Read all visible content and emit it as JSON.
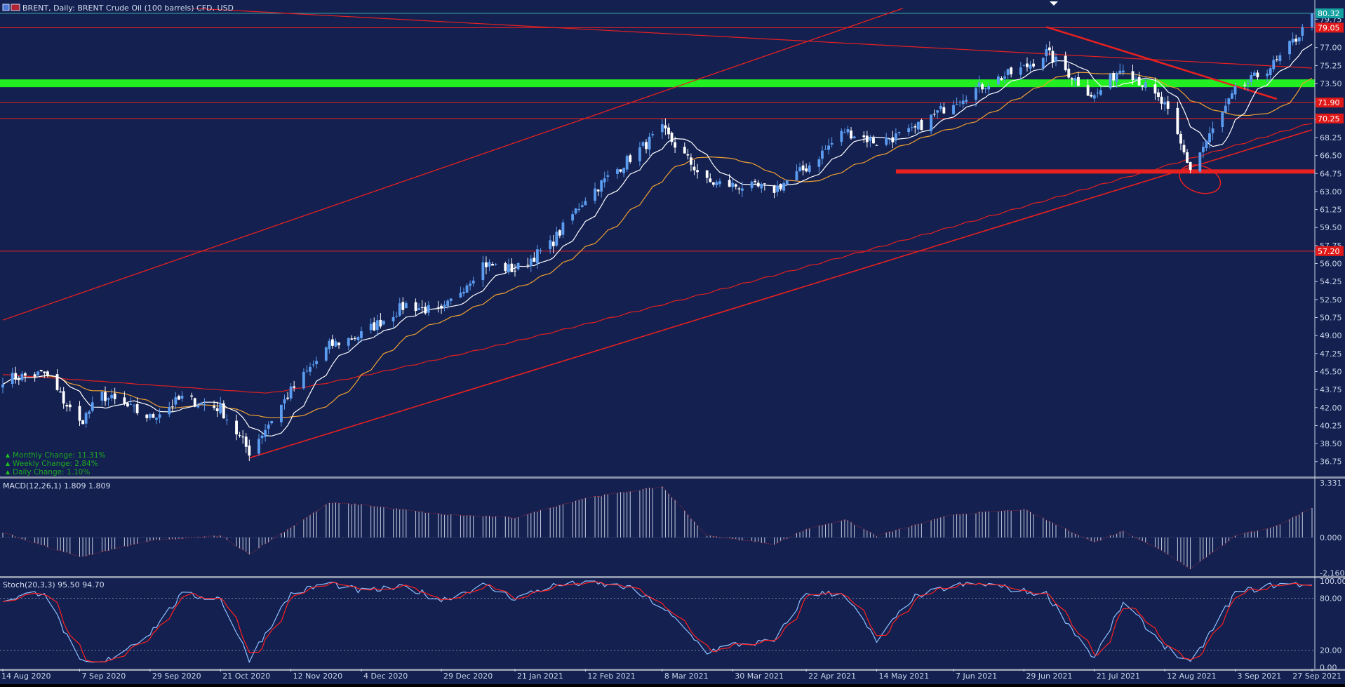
{
  "header": {
    "symbol_title": "BRENT, Daily:  BRENT Crude Oil (100 barrels) CFD, USD"
  },
  "colors": {
    "background": "#132050",
    "up_candle": "#5b9cf0",
    "down_candle": "#ffffff",
    "ma_fast": "#ffffff",
    "ma_mid": "#f0a030",
    "ma_slow": "#e02020",
    "trend_line": "#e82020",
    "support_zone": "#22ee22",
    "macd_hist": "#c8cde0",
    "macd_signal": "#e03030",
    "stoch_main": "#8fc0ff",
    "stoch_signal": "#ff2020"
  },
  "stats": [
    {
      "label": "Monthly Change: 11.31%",
      "direction": "up"
    },
    {
      "label": "Weekly Change: 2.84%",
      "direction": "up"
    },
    {
      "label": "Daily Change: 1.10%",
      "direction": "up"
    }
  ],
  "price_tags": [
    {
      "price": 80.32,
      "text": "80.32",
      "style": "teal"
    },
    {
      "price": 78.93,
      "text": "79.05",
      "style": "red"
    },
    {
      "price": 71.65,
      "text": "71.90",
      "style": "red"
    },
    {
      "price": 70.1,
      "text": "70.25",
      "style": "red"
    },
    {
      "price": 57.21,
      "text": "57.20",
      "style": "red"
    }
  ],
  "chart_data": [
    {
      "type": "candlestick",
      "title": "BRENT, Daily:  BRENT Crude Oil (100 barrels) CFD, USD",
      "ylim": [
        35.3,
        80.8
      ],
      "y_ticks": [
        "79.75",
        "77.00",
        "75.25",
        "73.50",
        "71.75",
        "70.00",
        "68.25",
        "66.50",
        "64.75",
        "63.00",
        "61.25",
        "59.50",
        "57.75",
        "56.00",
        "54.25",
        "52.50",
        "50.75",
        "49.00",
        "47.25",
        "45.50",
        "43.75",
        "42.00",
        "40.25",
        "38.50",
        "36.75"
      ],
      "x_labels": [
        "14 Aug 2020",
        "7 Sep 2020",
        "29 Sep 2020",
        "21 Oct 2020",
        "12 Nov 2020",
        "4 Dec 2020",
        "29 Dec 2020",
        "21 Jan 2021",
        "12 Feb 2021",
        "8 Mar 2021",
        "30 Mar 2021",
        "22 Apr 2021",
        "14 May 2021",
        "7 Jun 2021",
        "29 Jun 2021",
        "21 Jul 2021",
        "12 Aug 2021",
        "3 Sep 2021",
        "27 Sep 2021"
      ],
      "close_anchors": [
        {
          "date": "14 Aug 2020",
          "close": 44.8
        },
        {
          "date": "27 Aug 2020",
          "close": 45.3
        },
        {
          "date": "7 Sep 2020",
          "close": 40.5
        },
        {
          "date": "14 Sep 2020",
          "close": 43.2
        },
        {
          "date": "29 Sep 2020",
          "close": 41.0
        },
        {
          "date": "9 Oct 2020",
          "close": 42.9
        },
        {
          "date": "21 Oct 2020",
          "close": 41.9
        },
        {
          "date": "30 Oct 2020",
          "close": 37.7
        },
        {
          "date": "12 Nov 2020",
          "close": 43.6
        },
        {
          "date": "24 Nov 2020",
          "close": 48.0
        },
        {
          "date": "4 Dec 2020",
          "close": 49.1
        },
        {
          "date": "18 Dec 2020",
          "close": 52.0
        },
        {
          "date": "29 Dec 2020",
          "close": 51.2
        },
        {
          "date": "11 Jan 2021",
          "close": 56.0
        },
        {
          "date": "21 Jan 2021",
          "close": 55.4
        },
        {
          "date": "1 Feb 2021",
          "close": 57.8
        },
        {
          "date": "12 Feb 2021",
          "close": 62.4
        },
        {
          "date": "25 Feb 2021",
          "close": 66.0
        },
        {
          "date": "8 Mar 2021",
          "close": 69.0
        },
        {
          "date": "22 Mar 2021",
          "close": 63.9
        },
        {
          "date": "30 Mar 2021",
          "close": 63.6
        },
        {
          "date": "12 Apr 2021",
          "close": 63.2
        },
        {
          "date": "22 Apr 2021",
          "close": 65.3
        },
        {
          "date": "4 May 2021",
          "close": 68.9
        },
        {
          "date": "14 May 2021",
          "close": 67.8
        },
        {
          "date": "25 May 2021",
          "close": 68.8
        },
        {
          "date": "7 Jun 2021",
          "close": 71.8
        },
        {
          "date": "18 Jun 2021",
          "close": 73.6
        },
        {
          "date": "29 Jun 2021",
          "close": 75.0
        },
        {
          "date": "6 Jul 2021",
          "close": 76.5
        },
        {
          "date": "21 Jul 2021",
          "close": 72.2
        },
        {
          "date": "30 Jul 2021",
          "close": 75.3
        },
        {
          "date": "12 Aug 2021",
          "close": 71.3
        },
        {
          "date": "20 Aug 2021",
          "close": 65.2
        },
        {
          "date": "3 Sep 2021",
          "close": 72.7
        },
        {
          "date": "16 Sep 2021",
          "close": 75.6
        },
        {
          "date": "27 Sep 2021",
          "close": 79.8
        }
      ],
      "indicators": [
        "fast moving average (white)",
        "medium moving average (orange)",
        "slow moving average (red)"
      ]
    },
    {
      "type": "bar",
      "title": "MACD(12,26,1) 1.809 1.809",
      "ylim": [
        -2.4,
        3.5
      ],
      "y_ticks": [
        "3.331",
        "0.000",
        "-2.160"
      ],
      "anchors": [
        {
          "date": "14 Aug 2020",
          "value": 0.3
        },
        {
          "date": "7 Sep 2020",
          "value": -1.2
        },
        {
          "date": "29 Sep 2020",
          "value": -0.2
        },
        {
          "date": "21 Oct 2020",
          "value": 0.1
        },
        {
          "date": "30 Oct 2020",
          "value": -1.0
        },
        {
          "date": "24 Nov 2020",
          "value": 2.1
        },
        {
          "date": "4 Dec 2020",
          "value": 2.0
        },
        {
          "date": "29 Dec 2020",
          "value": 1.4
        },
        {
          "date": "21 Jan 2021",
          "value": 1.2
        },
        {
          "date": "12 Feb 2021",
          "value": 2.4
        },
        {
          "date": "8 Mar 2021",
          "value": 3.1
        },
        {
          "date": "22 Mar 2021",
          "value": 0.1
        },
        {
          "date": "12 Apr 2021",
          "value": -0.4
        },
        {
          "date": "22 Apr 2021",
          "value": 0.5
        },
        {
          "date": "4 May 2021",
          "value": 1.1
        },
        {
          "date": "14 May 2021",
          "value": 0.1
        },
        {
          "date": "7 Jun 2021",
          "value": 1.4
        },
        {
          "date": "29 Jun 2021",
          "value": 1.7
        },
        {
          "date": "21 Jul 2021",
          "value": -0.3
        },
        {
          "date": "30 Jul 2021",
          "value": 0.4
        },
        {
          "date": "12 Aug 2021",
          "value": -0.9
        },
        {
          "date": "20 Aug 2021",
          "value": -1.9
        },
        {
          "date": "3 Sep 2021",
          "value": 0.1
        },
        {
          "date": "16 Sep 2021",
          "value": 0.7
        },
        {
          "date": "27 Sep 2021",
          "value": 1.809
        }
      ]
    },
    {
      "type": "line",
      "title": "Stoch(20,3,3) 95.50 94.70",
      "ylim": [
        0,
        100
      ],
      "y_ticks": [
        "100.00",
        "80.00",
        "20.00",
        "0.00"
      ],
      "anchors": [
        {
          "date": "14 Aug 2020",
          "value": 78
        },
        {
          "date": "27 Aug 2020",
          "value": 88
        },
        {
          "date": "7 Sep 2020",
          "value": 6
        },
        {
          "date": "14 Sep 2020",
          "value": 4
        },
        {
          "date": "29 Sep 2020",
          "value": 40
        },
        {
          "date": "9 Oct 2020",
          "value": 84
        },
        {
          "date": "21 Oct 2020",
          "value": 80
        },
        {
          "date": "30 Oct 2020",
          "value": 10
        },
        {
          "date": "12 Nov 2020",
          "value": 85
        },
        {
          "date": "24 Nov 2020",
          "value": 98
        },
        {
          "date": "4 Dec 2020",
          "value": 88
        },
        {
          "date": "18 Dec 2020",
          "value": 93
        },
        {
          "date": "29 Dec 2020",
          "value": 78
        },
        {
          "date": "11 Jan 2021",
          "value": 95
        },
        {
          "date": "21 Jan 2021",
          "value": 80
        },
        {
          "date": "1 Feb 2021",
          "value": 94
        },
        {
          "date": "12 Feb 2021",
          "value": 98
        },
        {
          "date": "25 Feb 2021",
          "value": 93
        },
        {
          "date": "8 Mar 2021",
          "value": 70
        },
        {
          "date": "22 Mar 2021",
          "value": 18
        },
        {
          "date": "30 Mar 2021",
          "value": 26
        },
        {
          "date": "12 Apr 2021",
          "value": 30
        },
        {
          "date": "22 Apr 2021",
          "value": 86
        },
        {
          "date": "4 May 2021",
          "value": 85
        },
        {
          "date": "14 May 2021",
          "value": 30
        },
        {
          "date": "25 May 2021",
          "value": 80
        },
        {
          "date": "7 Jun 2021",
          "value": 95
        },
        {
          "date": "18 Jun 2021",
          "value": 96
        },
        {
          "date": "29 Jun 2021",
          "value": 88
        },
        {
          "date": "6 Jul 2021",
          "value": 85
        },
        {
          "date": "21 Jul 2021",
          "value": 10
        },
        {
          "date": "30 Jul 2021",
          "value": 75
        },
        {
          "date": "12 Aug 2021",
          "value": 25
        },
        {
          "date": "20 Aug 2021",
          "value": 3
        },
        {
          "date": "3 Sep 2021",
          "value": 86
        },
        {
          "date": "16 Sep 2021",
          "value": 96
        },
        {
          "date": "27 Sep 2021",
          "value": 96
        }
      ]
    }
  ]
}
